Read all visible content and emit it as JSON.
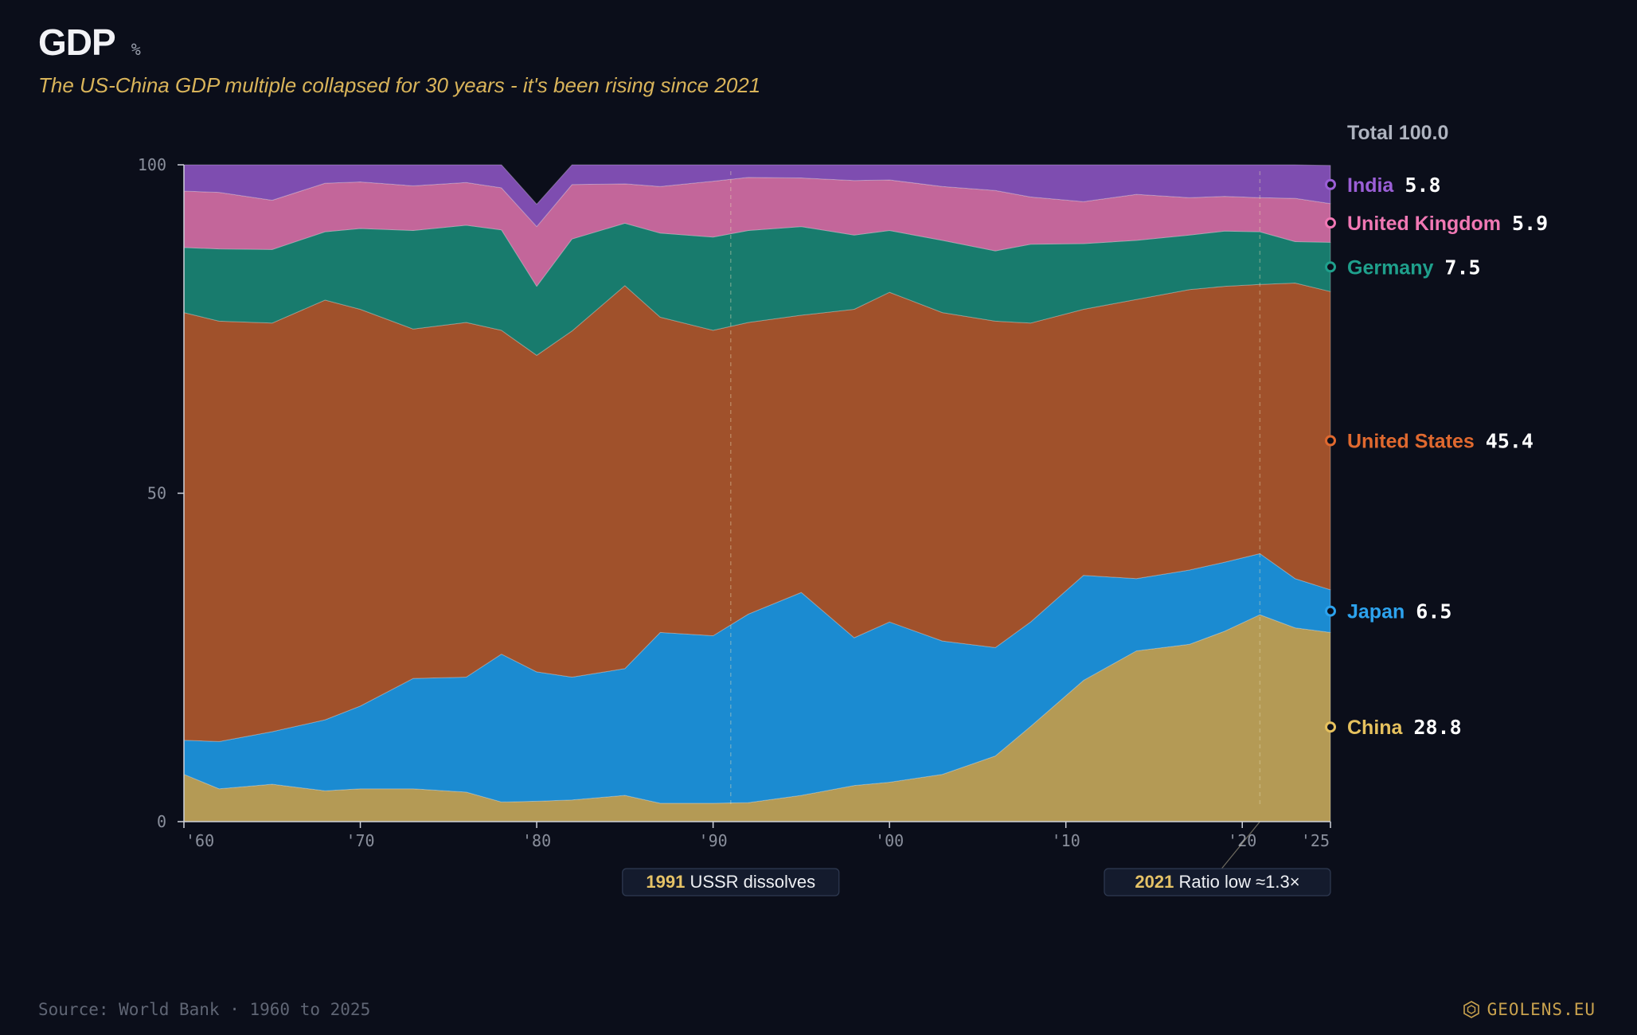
{
  "header": {
    "title": "GDP",
    "unit": "%",
    "subtitle": "The US-China GDP multiple collapsed for 30 years - it's been rising since 2021"
  },
  "footer": {
    "source": "Source: World Bank · 1960 to 2025",
    "brand": "GEOLENS.EU",
    "brand_icon": "hexagon-icon"
  },
  "colors": {
    "background": "#0b0e1a",
    "China": "#b49a55",
    "Japan": "#1b8bd1",
    "United States": "#a0512b",
    "Germany": "#187b6d",
    "United Kingdom": "#c3669a",
    "India": "#7e4db0",
    "accent": "#d9b45a"
  },
  "chart_data": {
    "type": "area",
    "stacked": true,
    "ylim": [
      0,
      100
    ],
    "xlim": [
      1960,
      2025
    ],
    "y_ticks": [
      "0",
      "50",
      "100"
    ],
    "x_tick_labels": [
      {
        "x": 1960,
        "label": "'60"
      },
      {
        "x": 1970,
        "label": "'70"
      },
      {
        "x": 1980,
        "label": "'80"
      },
      {
        "x": 1990,
        "label": "'90"
      },
      {
        "x": 2000,
        "label": "'00"
      },
      {
        "x": 2010,
        "label": "'10"
      },
      {
        "x": 2020,
        "label": "'20"
      },
      {
        "x": 2025,
        "label": "'25"
      }
    ],
    "total_label": "Total 100.0",
    "anchors": [
      1960,
      1962,
      1965,
      1968,
      1970,
      1973,
      1976,
      1978,
      1980,
      1982,
      1985,
      1987,
      1990,
      1992,
      1995,
      1998,
      2000,
      2003,
      2006,
      2008,
      2011,
      2014,
      2017,
      2019,
      2021,
      2023,
      2025
    ],
    "series": [
      {
        "name": "China",
        "value_label": "28.8",
        "values": [
          7.2,
          5.0,
          5.7,
          4.7,
          5.0,
          5.0,
          4.5,
          3.0,
          3.1,
          3.3,
          4.0,
          2.8,
          2.8,
          2.9,
          4.0,
          5.5,
          6.0,
          7.2,
          10.0,
          14.5,
          21.5,
          26.0,
          27.0,
          29.0,
          31.5,
          29.5,
          28.8
        ]
      },
      {
        "name": "Japan",
        "value_label": "6.5",
        "values": [
          5.2,
          7.2,
          8.0,
          10.8,
          12.6,
          16.8,
          17.5,
          22.5,
          19.7,
          18.7,
          19.3,
          26.0,
          25.5,
          28.7,
          30.9,
          22.5,
          24.4,
          20.3,
          16.5,
          15.9,
          16.0,
          11.0,
          11.3,
          10.5,
          9.3,
          7.5,
          6.5
        ]
      },
      {
        "name": "United States",
        "value_label": "45.4",
        "values": [
          65.1,
          64.0,
          62.2,
          63.9,
          60.4,
          53.2,
          54.0,
          49.3,
          48.2,
          52.7,
          58.3,
          48.0,
          46.5,
          44.4,
          42.2,
          50.0,
          50.2,
          50.0,
          49.7,
          45.5,
          40.5,
          42.5,
          42.7,
          42.0,
          41.0,
          45.0,
          45.4
        ]
      },
      {
        "name": "Germany",
        "value_label": "7.5",
        "values": [
          9.9,
          11.0,
          11.2,
          10.4,
          12.3,
          15.0,
          14.8,
          15.3,
          10.5,
          14.0,
          9.5,
          12.8,
          14.2,
          14.0,
          13.5,
          11.3,
          9.4,
          11.0,
          10.7,
          12.0,
          10.0,
          9.0,
          8.3,
          8.4,
          8.0,
          6.3,
          7.5
        ]
      },
      {
        "name": "United Kingdom",
        "value_label": "5.9",
        "values": [
          8.6,
          8.6,
          7.5,
          7.4,
          7.1,
          6.8,
          6.5,
          6.4,
          9.1,
          8.3,
          6.0,
          7.1,
          8.5,
          8.1,
          7.4,
          8.3,
          7.7,
          8.2,
          9.2,
          7.2,
          6.4,
          7.0,
          5.7,
          5.3,
          5.2,
          6.6,
          5.9
        ]
      },
      {
        "name": "India",
        "value_label": "5.8",
        "values": [
          4.0,
          4.2,
          5.4,
          2.8,
          2.6,
          3.2,
          2.7,
          3.5,
          3.4,
          3.0,
          2.9,
          3.3,
          2.5,
          1.9,
          2.0,
          2.4,
          2.3,
          3.3,
          3.9,
          4.9,
          5.6,
          4.5,
          5.0,
          4.8,
          5.0,
          5.1,
          5.8
        ]
      }
    ],
    "annotations": [
      {
        "year": 1991,
        "year_label": "1991",
        "text": "USSR dissolves"
      },
      {
        "year": 2021,
        "year_label": "2021",
        "text": "Ratio low ≈1.3×"
      }
    ]
  }
}
